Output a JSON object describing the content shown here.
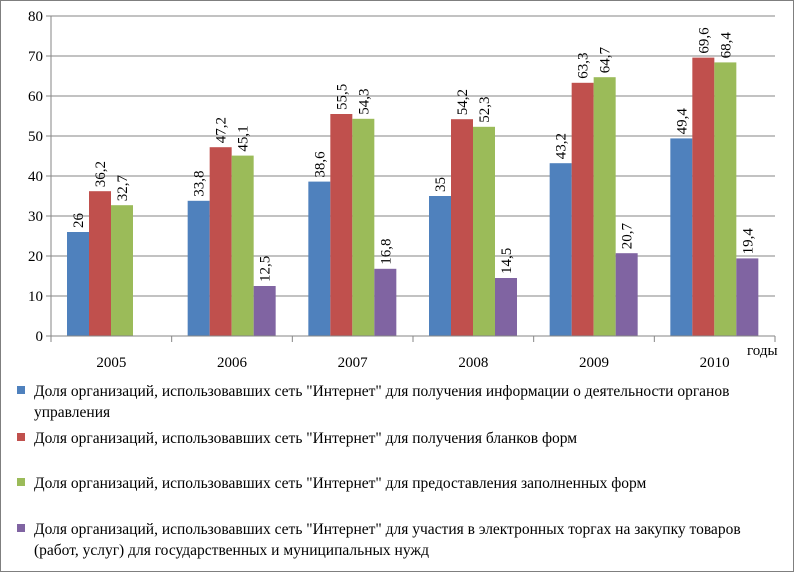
{
  "chart_data": {
    "type": "bar",
    "categories": [
      "2005",
      "2006",
      "2007",
      "2008",
      "2009",
      "2010"
    ],
    "xlabel": "годы",
    "ylim": [
      0,
      80
    ],
    "yticks": [
      0,
      10,
      20,
      30,
      40,
      50,
      60,
      70,
      80
    ],
    "grid": true,
    "legend_position": "bottom",
    "series": [
      {
        "name": "Доля организаций, использовавших сеть \"Интернет\" для получения информации о деятельности органов управления",
        "color": "#4f81bd",
        "values": [
          26,
          33.8,
          38.6,
          35,
          43.2,
          49.4
        ],
        "labels": [
          "26",
          "33,8",
          "38,6",
          "35",
          "43,2",
          "49,4"
        ]
      },
      {
        "name": "Доля организаций, использовавших сеть \"Интернет\" для получения бланков форм",
        "color": "#c0504d",
        "values": [
          36.2,
          47.2,
          55.5,
          54.2,
          63.3,
          69.6
        ],
        "labels": [
          "36,2",
          "47,2",
          "55,5",
          "54,2",
          "63,3",
          "69,6"
        ]
      },
      {
        "name": "Доля организаций, использовавших сеть \"Интернет\" для предоставления заполненных форм",
        "color": "#9bbb59",
        "values": [
          32.7,
          45.1,
          54.3,
          52.3,
          64.7,
          68.4
        ],
        "labels": [
          "32,7",
          "45,1",
          "54,3",
          "52,3",
          "64,7",
          "68,4"
        ]
      },
      {
        "name": "Доля организаций, использовавших сеть \"Интернет\" для участия в электронных торгах на закупку товаров (работ, услуг) для государственных и муниципальных нужд",
        "color": "#8064a2",
        "values": [
          null,
          12.5,
          16.8,
          14.5,
          20.7,
          19.4
        ],
        "labels": [
          null,
          "12,5",
          "16,8",
          "14,5",
          "20,7",
          "19,4"
        ]
      }
    ]
  }
}
